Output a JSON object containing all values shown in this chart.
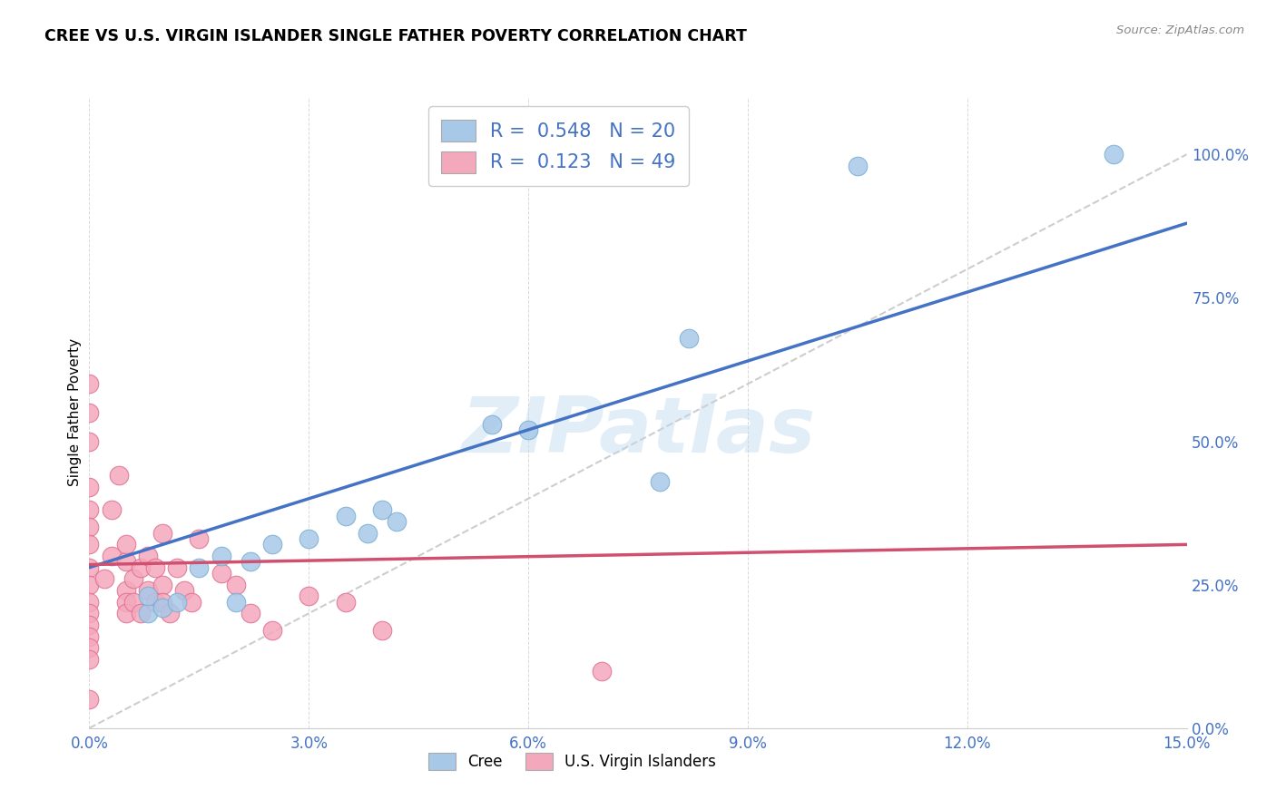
{
  "title": "CREE VS U.S. VIRGIN ISLANDER SINGLE FATHER POVERTY CORRELATION CHART",
  "source": "Source: ZipAtlas.com",
  "ylabel": "Single Father Poverty",
  "xlim": [
    0.0,
    0.15
  ],
  "ylim": [
    0.0,
    1.1
  ],
  "cree_color": "#A8C8E8",
  "cree_edge_color": "#7AAFD4",
  "virgin_color": "#F4A8BC",
  "virgin_edge_color": "#E07090",
  "trendline_cree_color": "#4472C4",
  "trendline_virgin_color": "#D05070",
  "trendline_diagonal_color": "#C8C8C8",
  "R_cree": 0.548,
  "N_cree": 20,
  "R_virgin": 0.123,
  "N_virgin": 49,
  "watermark": "ZIPatlas",
  "legend_labels": [
    "Cree",
    "U.S. Virgin Islanders"
  ],
  "cree_x": [
    0.008,
    0.008,
    0.01,
    0.012,
    0.015,
    0.018,
    0.02,
    0.022,
    0.025,
    0.03,
    0.035,
    0.038,
    0.04,
    0.042,
    0.055,
    0.06,
    0.078,
    0.082,
    0.105,
    0.14
  ],
  "cree_y": [
    0.2,
    0.23,
    0.21,
    0.22,
    0.28,
    0.3,
    0.22,
    0.29,
    0.32,
    0.33,
    0.37,
    0.34,
    0.38,
    0.36,
    0.53,
    0.52,
    0.43,
    0.68,
    0.98,
    1.0
  ],
  "virgin_x": [
    0.0,
    0.0,
    0.0,
    0.0,
    0.0,
    0.0,
    0.0,
    0.0,
    0.0,
    0.0,
    0.0,
    0.0,
    0.0,
    0.0,
    0.0,
    0.0,
    0.002,
    0.003,
    0.003,
    0.004,
    0.005,
    0.005,
    0.005,
    0.005,
    0.005,
    0.006,
    0.006,
    0.007,
    0.007,
    0.008,
    0.008,
    0.009,
    0.009,
    0.01,
    0.01,
    0.01,
    0.011,
    0.012,
    0.013,
    0.014,
    0.015,
    0.018,
    0.02,
    0.022,
    0.025,
    0.03,
    0.035,
    0.04,
    0.07
  ],
  "virgin_y": [
    0.5,
    0.55,
    0.6,
    0.42,
    0.38,
    0.35,
    0.32,
    0.28,
    0.25,
    0.22,
    0.2,
    0.18,
    0.16,
    0.14,
    0.12,
    0.05,
    0.26,
    0.3,
    0.38,
    0.44,
    0.29,
    0.24,
    0.22,
    0.32,
    0.2,
    0.26,
    0.22,
    0.28,
    0.2,
    0.3,
    0.24,
    0.22,
    0.28,
    0.25,
    0.22,
    0.34,
    0.2,
    0.28,
    0.24,
    0.22,
    0.33,
    0.27,
    0.25,
    0.2,
    0.17,
    0.23,
    0.22,
    0.17,
    0.1
  ],
  "cree_trendline_x": [
    0.0,
    0.15
  ],
  "cree_trendline_y": [
    0.28,
    0.88
  ],
  "virgin_trendline_x": [
    0.0,
    0.15
  ],
  "virgin_trendline_y": [
    0.285,
    0.32
  ]
}
